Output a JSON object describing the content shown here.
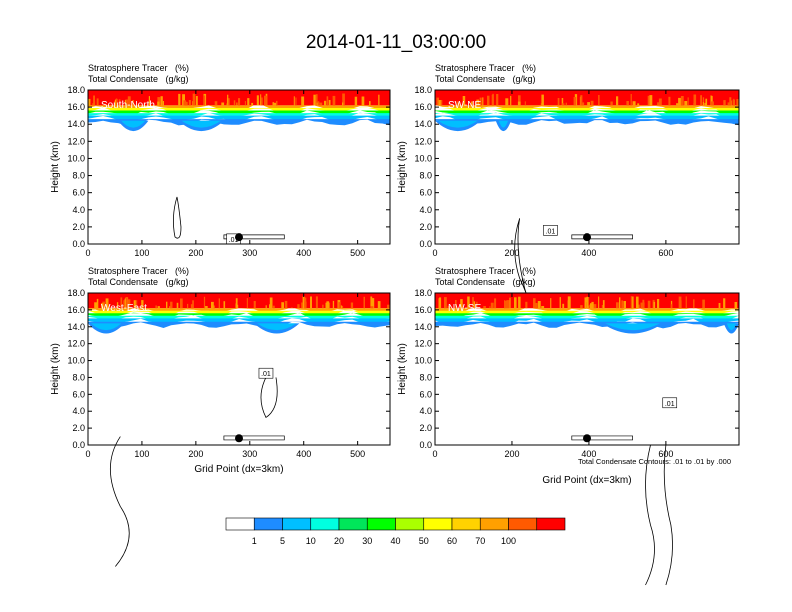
{
  "title": "2014-01-11_03:00:00",
  "panel_line1": "Stratosphere Tracer   (%)",
  "panel_line2": "Total Condensate   (g/kg)",
  "ylabel": "Height (km)",
  "xlabel": "Grid Point (dx=3km)",
  "contour_note": "Total Condensate Contours: .01 to .01 by .000",
  "panels": [
    {
      "name": "South-North",
      "xticks": [
        "0",
        "100",
        "200",
        "300",
        "400",
        "500"
      ],
      "xmax": 560,
      "marker_x": 280
    },
    {
      "name": "SW-NE",
      "xticks": [
        "0",
        "200",
        "400",
        "600"
      ],
      "xmax": 790,
      "marker_x": 395
    },
    {
      "name": "West-East",
      "xticks": [
        "0",
        "100",
        "200",
        "300",
        "400",
        "500"
      ],
      "xmax": 560,
      "marker_x": 280
    },
    {
      "name": "NW-SE",
      "xticks": [
        "0",
        "200",
        "400",
        "600"
      ],
      "xmax": 790,
      "marker_x": 395
    }
  ],
  "yticks": [
    "0.0",
    "2.0",
    "4.0",
    "6.0",
    "8.0",
    "10.0",
    "12.0",
    "14.0",
    "16.0",
    "18.0"
  ],
  "contour_labels": [
    ".01"
  ],
  "colorbar": {
    "labels": [
      "1",
      "5",
      "10",
      "20",
      "30",
      "40",
      "50",
      "60",
      "70",
      "100"
    ],
    "colors": [
      "#ffffff",
      "#1e8cff",
      "#00bfff",
      "#00ffe0",
      "#00e65a",
      "#00ff00",
      "#aaff00",
      "#ffff00",
      "#ffd200",
      "#ffa000",
      "#ff5a00",
      "#ff0000"
    ]
  },
  "chart_data": {
    "type": "heatmap",
    "title": "2014-01-11_03:00:00",
    "xlabel": "Grid Point (dx=3km)",
    "ylabel": "Height (km)",
    "ylim": [
      0,
      18
    ],
    "colorbar_levels": [
      1,
      5,
      10,
      20,
      30,
      40,
      50,
      60,
      70,
      100
    ],
    "panels": [
      "South-North",
      "SW-NE",
      "West-East",
      "NW-SE"
    ]
  }
}
